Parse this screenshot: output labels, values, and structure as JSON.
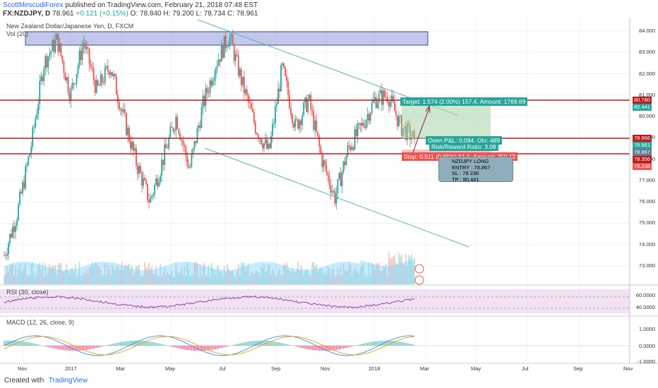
{
  "header": {
    "user": "ScottMescudiForex",
    "published": "published on TradingView.com, February 21, 2018 07:48 EST",
    "ticker": "FX:NZDJPY, D",
    "last": "78.961",
    "change": "+0.121 (+0.15%)",
    "ohlc": {
      "o": "O: 78.840",
      "h": "H: 79.200",
      "l": "L: 78.734",
      "c": "C: 78.961"
    }
  },
  "panes": {
    "main_title": "New Zealand Dollar/Japanese Yen, D, FXCM",
    "vol_label": "Vol (20)",
    "rsi_label": "RSI (30, close)",
    "macd_label": "MACD (12, 26, close, 9)"
  },
  "position": {
    "target": "Target: 1.574 (2.00%) 157.4, Amount: 1769.69",
    "pnl": "Open P&L: 0.094, Qty: 489",
    "rr": "Risk/Reward Ratio: 3.08",
    "stop": "Stop: 0.511 (0.65%) 51.1, Amount: 750.12"
  },
  "note": {
    "lines": [
      "NZDJPY LONG",
      "ENTRY : 78.867",
      "SL : 78.238",
      "TP : 80.441"
    ]
  },
  "price_labels": {
    "l80780": "80.780",
    "l80441": "80.441",
    "l78966": "78.966",
    "l78961": "78.961",
    "l78867": "78.867",
    "l78356": "78.356",
    "l78238": "78.238"
  },
  "rsi_ticks": [
    "60.0000",
    "40.0000"
  ],
  "macd_ticks": [
    "1.0000",
    "0.0000",
    "-1.0000"
  ],
  "footer": {
    "created": "Created with",
    "brand": "TradingView"
  },
  "colors": {
    "bull": "#26a69a",
    "bear": "#ef5350",
    "target": "#26a69a",
    "stop": "#ef5350",
    "channel": "#4db6ac",
    "resist": "#b71c1c",
    "supply": "#7986cb"
  },
  "chart_data": {
    "type": "line",
    "title": "New Zealand Dollar/Japanese Yen, D, FXCM",
    "x_ticks": [
      "Nov",
      "2017",
      "Mar",
      "May",
      "Jul",
      "Sep",
      "Nov",
      "2018",
      "Mar",
      "May",
      "Jul",
      "Sep",
      "Nov"
    ],
    "y_ticks": [
      "84.000",
      "83.000",
      "82.000",
      "81.000",
      "80.000",
      "79.000",
      "78.000",
      "77.000",
      "76.000",
      "75.000",
      "74.000",
      "73.000"
    ],
    "ylim": [
      72.5,
      84.5
    ],
    "close_points": [
      {
        "x": "Oct 2016",
        "y": 73.5
      },
      {
        "x": "Nov 2016",
        "y": 75.5
      },
      {
        "x": "Nov 2016",
        "y": 78.5
      },
      {
        "x": "Dec 2016",
        "y": 82.5
      },
      {
        "x": "Dec 2016",
        "y": 83.6
      },
      {
        "x": "Jan 2017",
        "y": 81.0
      },
      {
        "x": "Jan 2017",
        "y": 83.5
      },
      {
        "x": "Feb 2017",
        "y": 81.2
      },
      {
        "x": "Feb 2017",
        "y": 82.4
      },
      {
        "x": "Mar 2017",
        "y": 80.0
      },
      {
        "x": "Apr 2017",
        "y": 77.8
      },
      {
        "x": "Apr 2017",
        "y": 76.0
      },
      {
        "x": "May 2017",
        "y": 78.0
      },
      {
        "x": "May 2017",
        "y": 80.0
      },
      {
        "x": "Jun 2017",
        "y": 77.5
      },
      {
        "x": "Jun 2017",
        "y": 80.5
      },
      {
        "x": "Jul 2017",
        "y": 82.5
      },
      {
        "x": "Jul 2017",
        "y": 83.8
      },
      {
        "x": "Aug 2017",
        "y": 81.5
      },
      {
        "x": "Aug 2017",
        "y": 79.5
      },
      {
        "x": "Sep 2017",
        "y": 78.3
      },
      {
        "x": "Sep 2017",
        "y": 82.3
      },
      {
        "x": "Oct 2017",
        "y": 79.5
      },
      {
        "x": "Oct 2017",
        "y": 80.8
      },
      {
        "x": "Nov 2017",
        "y": 78.0
      },
      {
        "x": "Nov 2017",
        "y": 76.2
      },
      {
        "x": "Dec 2017",
        "y": 78.5
      },
      {
        "x": "Dec 2017",
        "y": 79.5
      },
      {
        "x": "Jan 2018",
        "y": 80.8
      },
      {
        "x": "Jan 2018",
        "y": 81.0
      },
      {
        "x": "Feb 2018",
        "y": 79.5
      },
      {
        "x": "Feb 2018",
        "y": 78.961
      }
    ],
    "levels": {
      "target": 80.441,
      "entry": 78.867,
      "stop": 78.238,
      "resistance": 80.78,
      "support_line": 78.966,
      "supply_zone": [
        83.3,
        84.0
      ]
    }
  }
}
